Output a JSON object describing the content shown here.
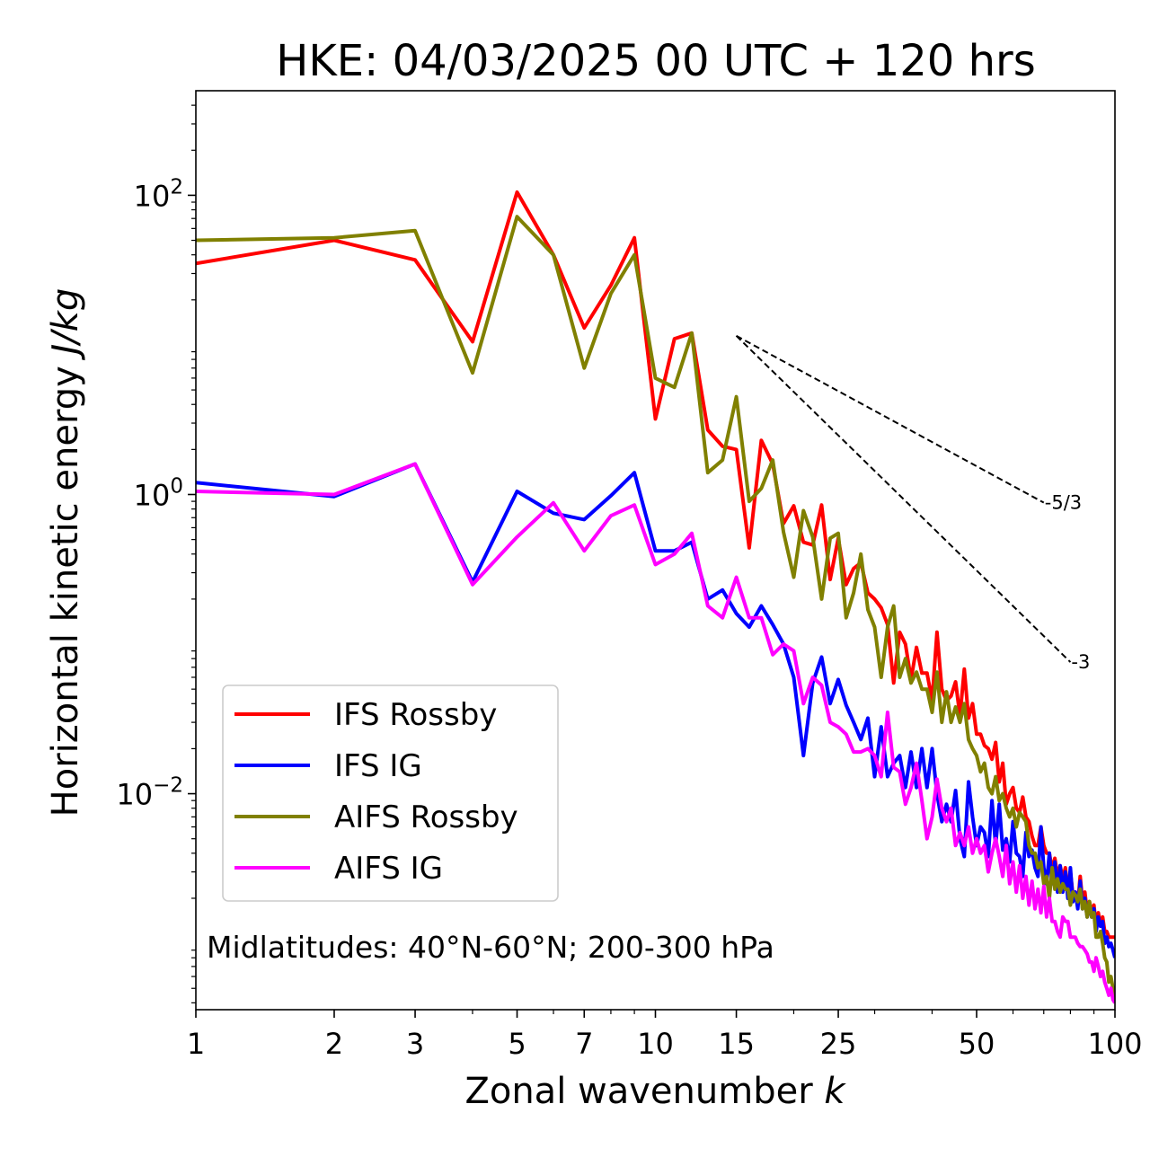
{
  "chart_data": {
    "type": "line",
    "title": "HKE: 04/03/2025 00 UTC + 120 hrs",
    "xlabel": "Zonal wavenumber",
    "xlabel_var": "k",
    "ylabel": "Horizontal kinetic energy",
    "ylabel_unit": "J/kg",
    "xscale": "log",
    "yscale": "log",
    "xlim": [
      1,
      100
    ],
    "ylim": [
      0.00036,
      500
    ],
    "xticks": [
      1,
      2,
      3,
      5,
      7,
      10,
      15,
      25,
      50,
      100
    ],
    "xtick_labels": [
      "1",
      "2",
      "3",
      "5",
      "7",
      "10",
      "15",
      "25",
      "50",
      "100"
    ],
    "yticks": [
      {
        "value": 100,
        "base": "10",
        "exp": "2"
      },
      {
        "value": 1,
        "base": "10",
        "exp": "0"
      },
      {
        "value": 0.01,
        "base": "10",
        "exp": "−2"
      }
    ],
    "annotation": "Midlatitudes: 40°N-60°N; 200-300 hPa",
    "legend_position": "lower-left",
    "x": [
      1,
      2,
      3,
      4,
      5,
      6,
      7,
      8,
      9,
      10,
      11,
      12,
      13,
      14,
      15,
      16,
      17,
      18,
      19,
      20,
      21,
      22,
      23,
      24,
      25,
      26,
      27,
      28,
      29,
      30,
      31,
      32,
      33,
      34,
      35,
      36,
      37,
      38,
      39,
      40,
      41,
      42,
      43,
      44,
      45,
      46,
      47,
      48,
      49,
      50,
      51,
      52,
      53,
      54,
      55,
      56,
      57,
      58,
      59,
      60,
      61,
      62,
      63,
      64,
      65,
      66,
      67,
      68,
      69,
      70,
      71,
      72,
      73,
      74,
      75,
      76,
      77,
      78,
      79,
      80,
      81,
      82,
      83,
      84,
      85,
      86,
      87,
      88,
      89,
      90,
      91,
      92,
      93,
      94,
      95,
      96,
      97,
      98,
      99,
      100
    ],
    "series": [
      {
        "name": "IFS Rossby",
        "color": "#ff0000",
        "values": [
          35,
          50,
          37,
          10.5,
          105,
          40,
          13,
          25,
          52,
          3.2,
          11,
          12,
          2.7,
          2.1,
          2.0,
          0.44,
          2.3,
          1.6,
          0.64,
          0.84,
          0.48,
          0.46,
          0.85,
          0.27,
          0.51,
          0.25,
          0.32,
          0.35,
          0.22,
          0.2,
          0.175,
          0.135,
          0.055,
          0.12,
          0.1,
          0.058,
          0.095,
          0.064,
          0.064,
          0.042,
          0.12,
          0.05,
          0.042,
          0.045,
          0.056,
          0.033,
          0.068,
          0.032,
          0.04,
          0.025,
          0.025,
          0.021,
          0.02,
          0.017,
          0.022,
          0.012,
          0.016,
          0.0085,
          0.01,
          0.011,
          0.008,
          0.0075,
          0.0095,
          0.007,
          0.0065,
          0.0052,
          0.0045,
          0.0045,
          0.006,
          0.0045,
          0.004,
          0.004,
          0.0031,
          0.0037,
          0.0028,
          0.0033,
          0.0027,
          0.0032,
          0.0022,
          0.003,
          0.0021,
          0.0022,
          0.0018,
          0.0028,
          0.0019,
          0.0022,
          0.0016,
          0.0019,
          0.0016,
          0.0018,
          0.0013,
          0.0016,
          0.0013,
          0.0015,
          0.0012,
          0.0012,
          0.0011,
          0.0011,
          0.0011,
          0.0011
        ]
      },
      {
        "name": "IFS IG",
        "color": "#0000ff",
        "values": [
          1.2,
          0.97,
          1.6,
          0.26,
          1.05,
          0.75,
          0.68,
          0.98,
          1.4,
          0.42,
          0.42,
          0.48,
          0.2,
          0.23,
          0.16,
          0.13,
          0.18,
          0.135,
          0.1,
          0.06,
          0.018,
          0.055,
          0.082,
          0.04,
          0.058,
          0.039,
          0.03,
          0.023,
          0.032,
          0.013,
          0.028,
          0.013,
          0.016,
          0.018,
          0.011,
          0.019,
          0.011,
          0.02,
          0.011,
          0.02,
          0.01,
          0.0065,
          0.0085,
          0.0065,
          0.0105,
          0.005,
          0.0038,
          0.012,
          0.007,
          0.0045,
          0.006,
          0.0055,
          0.0038,
          0.009,
          0.0045,
          0.0085,
          0.0042,
          0.005,
          0.0035,
          0.0065,
          0.004,
          0.0038,
          0.0028,
          0.0055,
          0.0038,
          0.0042,
          0.0032,
          0.0028,
          0.006,
          0.0032,
          0.0025,
          0.004,
          0.0025,
          0.0035,
          0.0022,
          0.0033,
          0.0022,
          0.003,
          0.002,
          0.0032,
          0.0019,
          0.0022,
          0.0017,
          0.0026,
          0.0017,
          0.002,
          0.0015,
          0.0018,
          0.0015,
          0.0017,
          0.0012,
          0.0015,
          0.0013,
          0.0014,
          0.001,
          0.0011,
          0.00095,
          0.001,
          0.0009,
          0.0008
        ]
      },
      {
        "name": "AIFS Rossby",
        "color": "#808000",
        "values": [
          50,
          52,
          58,
          6.5,
          72,
          40,
          7.0,
          22,
          40,
          6.0,
          5.2,
          12,
          1.4,
          1.7,
          4.5,
          0.9,
          1.1,
          1.7,
          0.56,
          0.28,
          0.78,
          0.52,
          0.2,
          0.51,
          0.55,
          0.15,
          0.22,
          0.4,
          0.17,
          0.13,
          0.06,
          0.13,
          0.18,
          0.06,
          0.08,
          0.055,
          0.065,
          0.05,
          0.05,
          0.035,
          0.065,
          0.03,
          0.048,
          0.03,
          0.038,
          0.03,
          0.04,
          0.023,
          0.02,
          0.018,
          0.014,
          0.016,
          0.011,
          0.01,
          0.013,
          0.009,
          0.01,
          0.008,
          0.007,
          0.008,
          0.006,
          0.0075,
          0.007,
          0.0065,
          0.0045,
          0.004,
          0.004,
          0.0032,
          0.0035,
          0.0025,
          0.0028,
          0.002,
          0.0032,
          0.0023,
          0.0027,
          0.0022,
          0.0025,
          0.0023,
          0.0023,
          0.0018,
          0.0022,
          0.0021,
          0.0019,
          0.0023,
          0.0017,
          0.0019,
          0.0015,
          0.0019,
          0.0015,
          0.0016,
          0.0011,
          0.0011,
          0.0012,
          0.001,
          0.0008,
          0.00075,
          0.00055,
          0.0006,
          0.0005,
          0.0004
        ]
      },
      {
        "name": "AIFS IG",
        "color": "#ff00ff",
        "values": [
          1.05,
          1.0,
          1.6,
          0.25,
          0.52,
          0.88,
          0.42,
          0.72,
          0.85,
          0.34,
          0.4,
          0.55,
          0.18,
          0.15,
          0.28,
          0.15,
          0.15,
          0.085,
          0.1,
          0.09,
          0.04,
          0.06,
          0.053,
          0.03,
          0.028,
          0.025,
          0.019,
          0.019,
          0.02,
          0.018,
          0.013,
          0.035,
          0.015,
          0.014,
          0.0085,
          0.011,
          0.016,
          0.009,
          0.005,
          0.007,
          0.0125,
          0.008,
          0.0065,
          0.008,
          0.0045,
          0.0055,
          0.0045,
          0.006,
          0.004,
          0.005,
          0.004,
          0.0045,
          0.003,
          0.004,
          0.005,
          0.0038,
          0.0028,
          0.0045,
          0.0025,
          0.0035,
          0.0022,
          0.0033,
          0.002,
          0.0028,
          0.0018,
          0.0026,
          0.0017,
          0.0023,
          0.0016,
          0.0024,
          0.0015,
          0.002,
          0.0014,
          0.0014,
          0.0012,
          0.0011,
          0.0015,
          0.0014,
          0.0014,
          0.0011,
          0.0011,
          0.0011,
          0.001,
          0.00095,
          0.00095,
          0.0009,
          0.00085,
          0.00075,
          0.00075,
          0.00065,
          0.0008,
          0.0007,
          0.0006,
          0.00065,
          0.00055,
          0.0005,
          0.00045,
          0.0005,
          0.00042,
          0.0004
        ]
      }
    ],
    "reference_lines": [
      {
        "label": "-5/3",
        "slope": -1.6667,
        "x0": 15,
        "y0": 11.5,
        "x1": 70,
        "color": "#000000"
      },
      {
        "label": "-3",
        "slope": -3,
        "x0": 15,
        "y0": 11.5,
        "x1": 80,
        "color": "#000000"
      }
    ]
  }
}
